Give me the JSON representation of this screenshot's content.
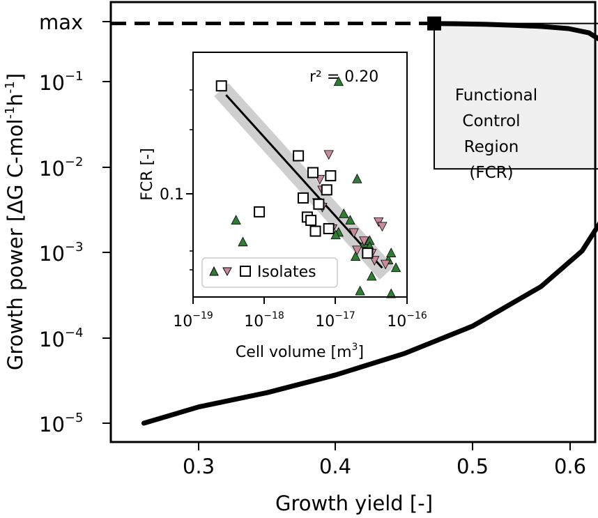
{
  "chart_data": [
    {
      "type": "line",
      "xlabel": "Growth yield [-]",
      "ylabel": "Growth power [ΔG C-mol⁻¹h⁻¹]",
      "xlim": [
        0.25,
        0.62
      ],
      "x_ticks": [
        "0.3",
        "0.4",
        "0.5",
        "0.6"
      ],
      "y_ticks": [
        "10^-5",
        "10^-4",
        "10^-3",
        "10^-2",
        "10^-1"
      ],
      "max_label": "max",
      "y_scale": "log",
      "series": [
        {
          "x": [
            0.26,
            0.3,
            0.35,
            0.4,
            0.45,
            0.5,
            0.55,
            0.58,
            0.6,
            0.604,
            0.603,
            0.6,
            0.595,
            0.585,
            0.57,
            0.55,
            0.53,
            0.51,
            0.49,
            0.472
          ],
          "y": [
            1e-05,
            1.55e-05,
            2.28e-05,
            3.67e-05,
            6.53e-05,
            0.000137,
            0.000398,
            0.00104,
            0.00331,
            0.0095,
            0.0575,
            0.174,
            0.295,
            0.372,
            0.417,
            0.442,
            0.457,
            0.468,
            0.475,
            0.479
          ]
        }
      ],
      "markers": [
        {
          "x": 0.472,
          "y": 0.479
        },
        {
          "x": 0.604,
          "y": 0.0095
        }
      ],
      "max_line_y": 0.479,
      "region": {
        "x_range": [
          0.472,
          0.604
        ],
        "y_range": [
          0.0095,
          0.479
        ],
        "label_lines": [
          "Functional",
          "Control",
          "Region",
          "(FCR)"
        ],
        "fill_color": "#f0f0f0"
      },
      "grid": false
    },
    {
      "type": "scatter",
      "xlabel": "Cell volume [m³]",
      "ylabel": "FCR [-]",
      "x_scale": "log",
      "y_scale": "log",
      "xlim": [
        1e-19,
        1e-16
      ],
      "ylim": [
        0.016,
        0.8
      ],
      "x_ticks": [
        "10^-19",
        "10^-18",
        "10^-17",
        "10^-16"
      ],
      "y_ticks": [
        "0.1"
      ],
      "annotation": "r² = 0.20",
      "legend": {
        "label": "Isolates",
        "placement": "lower-left"
      },
      "series": [
        {
          "marker": "triangle-up",
          "color": "#2e7d32",
          "points": [
            [
              4e-19,
              0.072
            ],
            [
              5e-19,
              0.055
            ],
            [
              1.1e-17,
              0.4
            ],
            [
              1.3e-17,
              0.078
            ],
            [
              1.1e-17,
              0.062
            ],
            [
              1.6e-17,
              0.072
            ],
            [
              2e-17,
              0.12
            ],
            [
              1.9e-17,
              0.046
            ],
            [
              2.5e-17,
              0.054
            ],
            [
              2.2e-17,
              0.03
            ],
            [
              3e-17,
              0.056
            ],
            [
              3.2e-17,
              0.036
            ],
            [
              3e-17,
              0.052
            ],
            [
              6e-17,
              0.029
            ],
            [
              7e-17,
              0.04
            ],
            [
              5.5e-17,
              0.044
            ],
            [
              1e-17,
              0.06
            ],
            [
              8e-18,
              0.065
            ],
            [
              6e-17,
              0.048
            ]
          ]
        },
        {
          "marker": "triangle-down",
          "color": "#c98a9b",
          "points": [
            [
              8e-18,
              0.163
            ],
            [
              5.5e-18,
              0.09
            ],
            [
              6.5e-18,
              0.085
            ],
            [
              9e-18,
              0.065
            ],
            [
              2.5e-17,
              0.056
            ],
            [
              3.2e-17,
              0.048
            ],
            [
              3.5e-17,
              0.044
            ],
            [
              4e-17,
              0.071
            ],
            [
              4.5e-17,
              0.067
            ],
            [
              1.8e-17,
              0.062
            ],
            [
              2e-17,
              0.05
            ],
            [
              5e-17,
              0.042
            ],
            [
              6e-18,
              0.12
            ],
            [
              6.5e-18,
              0.105
            ]
          ]
        },
        {
          "marker": "square-open",
          "color": "#ffffff",
          "points": [
            [
              2.5e-19,
              0.38
            ],
            [
              8.5e-19,
              0.08
            ],
            [
              3e-18,
              0.16
            ],
            [
              3.5e-18,
              0.095
            ],
            [
              4e-18,
              0.075
            ],
            [
              4.5e-18,
              0.072
            ],
            [
              4.8e-18,
              0.13
            ],
            [
              5.2e-18,
              0.063
            ],
            [
              5.8e-18,
              0.088
            ],
            [
              8e-18,
              0.065
            ],
            [
              8.5e-18,
              0.125
            ],
            [
              7.5e-18,
              0.105
            ],
            [
              2.8e-17,
              0.048
            ]
          ]
        }
      ],
      "fit_line": {
        "x": [
          2.9e-19,
          4.5e-17
        ],
        "y": [
          0.34,
          0.04
        ]
      }
    }
  ]
}
